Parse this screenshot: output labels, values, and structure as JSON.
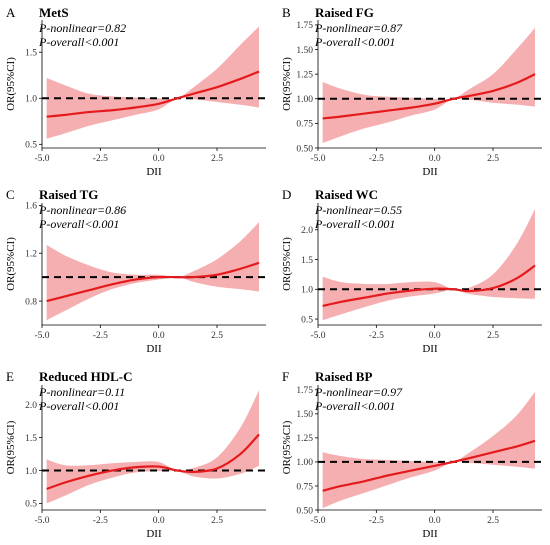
{
  "colors": {
    "line": "#e41a1c",
    "band": "#f4a1a3",
    "ref": "#000000"
  },
  "chart_data": [
    {
      "type": "line",
      "letter": "A",
      "title": "MetS",
      "p_nonlinear": "P-nonlinear=0.82",
      "p_overall": "P-overall<0.001",
      "xlabel": "DII",
      "ylabel": "OR(95%CI)",
      "xlim": [
        -5.0,
        4.6
      ],
      "ylim": [
        0.46,
        1.85
      ],
      "xticks": [
        -5.0,
        -2.5,
        0.0,
        2.5
      ],
      "xtick_labels": [
        "-5.0",
        "-2.5",
        "0.0",
        "2.5"
      ],
      "yticks": [
        0.5,
        1.0,
        1.5
      ],
      "ytick_labels": [
        "0.5",
        "1.0",
        "1.5"
      ],
      "reference_y": 1.0,
      "x": [
        -4.8,
        -4.0,
        -3.0,
        -2.0,
        -1.0,
        0.0,
        0.8,
        1.5,
        2.5,
        3.5,
        4.3
      ],
      "y": [
        0.8,
        0.82,
        0.85,
        0.87,
        0.9,
        0.94,
        1.0,
        1.05,
        1.12,
        1.21,
        1.29
      ],
      "lower": [
        0.56,
        0.62,
        0.7,
        0.76,
        0.82,
        0.88,
        1.0,
        0.99,
        0.96,
        0.93,
        0.9
      ],
      "upper": [
        1.22,
        1.14,
        1.05,
        1.02,
        1.01,
        1.0,
        1.0,
        1.12,
        1.32,
        1.58,
        1.78
      ]
    },
    {
      "type": "line",
      "letter": "B",
      "title": "Raised FG",
      "p_nonlinear": "P-nonlinear=0.87",
      "p_overall": "P-overall<0.001",
      "xlabel": "DII",
      "ylabel": "OR(95%CI)",
      "xlim": [
        -5.0,
        4.6
      ],
      "ylim": [
        0.5,
        1.8
      ],
      "xticks": [
        -5.0,
        -2.5,
        0.0,
        2.5
      ],
      "xtick_labels": [
        "-5.0",
        "-2.5",
        "0.0",
        "2.5"
      ],
      "yticks": [
        0.5,
        0.75,
        1.0,
        1.25,
        1.5,
        1.75
      ],
      "ytick_labels": [
        "0.50",
        "0.75",
        "1.00",
        "1.25",
        "1.50",
        "1.75"
      ],
      "reference_y": 1.0,
      "x": [
        -4.8,
        -4.0,
        -3.0,
        -2.0,
        -1.0,
        0.0,
        0.8,
        1.5,
        2.5,
        3.5,
        4.3
      ],
      "y": [
        0.8,
        0.82,
        0.85,
        0.88,
        0.91,
        0.95,
        1.0,
        1.03,
        1.08,
        1.16,
        1.25
      ],
      "lower": [
        0.55,
        0.62,
        0.7,
        0.76,
        0.83,
        0.89,
        1.0,
        0.99,
        0.96,
        0.94,
        0.92
      ],
      "upper": [
        1.17,
        1.1,
        1.04,
        1.02,
        1.01,
        1.0,
        1.0,
        1.1,
        1.25,
        1.5,
        1.72
      ]
    },
    {
      "type": "line",
      "letter": "C",
      "title": "Raised TG",
      "p_nonlinear": "P-nonlinear=0.86",
      "p_overall": "P-overall<0.001",
      "xlabel": "DII",
      "ylabel": "OR(95%CI)",
      "xlim": [
        -5.0,
        4.6
      ],
      "ylim": [
        0.6,
        1.62
      ],
      "xticks": [
        -5.0,
        -2.5,
        0.0,
        2.5
      ],
      "xtick_labels": [
        "-5.0",
        "-2.5",
        "0.0",
        "2.5"
      ],
      "yticks": [
        0.8,
        1.2,
        1.6
      ],
      "ytick_labels": [
        "0.8",
        "1.2",
        "1.6"
      ],
      "reference_y": 1.0,
      "x": [
        -4.8,
        -4.0,
        -3.0,
        -2.0,
        -1.0,
        0.0,
        0.8,
        1.5,
        2.5,
        3.5,
        4.3
      ],
      "y": [
        0.8,
        0.84,
        0.89,
        0.94,
        0.98,
        1.0,
        1.0,
        1.0,
        1.02,
        1.07,
        1.12
      ],
      "lower": [
        0.64,
        0.72,
        0.82,
        0.9,
        0.95,
        0.98,
        1.0,
        0.96,
        0.92,
        0.9,
        0.88
      ],
      "upper": [
        1.27,
        1.18,
        1.1,
        1.04,
        1.02,
        1.02,
        1.0,
        1.05,
        1.15,
        1.3,
        1.46
      ]
    },
    {
      "type": "line",
      "letter": "D",
      "title": "Raised WC",
      "p_nonlinear": "P-nonlinear=0.55",
      "p_overall": "P-overall<0.001",
      "xlabel": "DII",
      "ylabel": "OR(95%CI)",
      "xlim": [
        -5.0,
        4.6
      ],
      "ylim": [
        0.4,
        2.45
      ],
      "xticks": [
        -5.0,
        -2.5,
        0.0,
        2.5
      ],
      "xtick_labels": [
        "-5.0",
        "-2.5",
        "0.0",
        "2.5"
      ],
      "yticks": [
        0.5,
        1.0,
        1.5,
        2.0
      ],
      "ytick_labels": [
        "0.5",
        "1.0",
        "1.5",
        "2.0"
      ],
      "reference_y": 1.0,
      "x": [
        -4.8,
        -4.0,
        -3.0,
        -2.0,
        -1.0,
        0.0,
        0.8,
        1.5,
        2.5,
        3.5,
        4.3
      ],
      "y": [
        0.72,
        0.79,
        0.86,
        0.93,
        0.98,
        1.01,
        1.0,
        0.97,
        1.02,
        1.18,
        1.4
      ],
      "lower": [
        0.48,
        0.58,
        0.7,
        0.81,
        0.88,
        0.93,
        0.99,
        0.92,
        0.87,
        0.85,
        0.84
      ],
      "upper": [
        1.21,
        1.12,
        1.09,
        1.09,
        1.12,
        1.12,
        1.0,
        1.03,
        1.25,
        1.75,
        2.35
      ]
    },
    {
      "type": "line",
      "letter": "E",
      "title": "Reduced HDL-C",
      "p_nonlinear": "P-nonlinear=0.11",
      "p_overall": "P-overall<0.001",
      "xlabel": "DII",
      "ylabel": "OR(95%CI)",
      "xlim": [
        -5.0,
        4.6
      ],
      "ylim": [
        0.4,
        2.3
      ],
      "xticks": [
        -5.0,
        -2.5,
        0.0,
        2.5
      ],
      "xtick_labels": [
        "-5.0",
        "-2.5",
        "0.0",
        "2.5"
      ],
      "yticks": [
        0.5,
        1.0,
        1.5,
        2.0
      ],
      "ytick_labels": [
        "0.5",
        "1.0",
        "1.5",
        "2.0"
      ],
      "reference_y": 1.0,
      "x": [
        -4.8,
        -4.0,
        -3.0,
        -2.0,
        -1.0,
        0.0,
        0.8,
        1.5,
        2.5,
        3.5,
        4.3
      ],
      "y": [
        0.72,
        0.82,
        0.92,
        1.0,
        1.05,
        1.06,
        1.0,
        0.98,
        1.03,
        1.25,
        1.55
      ],
      "lower": [
        0.5,
        0.62,
        0.78,
        0.89,
        0.97,
        0.99,
        0.99,
        0.91,
        0.88,
        0.95,
        1.07
      ],
      "upper": [
        1.17,
        1.08,
        1.08,
        1.11,
        1.13,
        1.13,
        1.0,
        1.04,
        1.2,
        1.65,
        2.22
      ]
    },
    {
      "type": "line",
      "letter": "F",
      "title": "Raised BP",
      "p_nonlinear": "P-nonlinear=0.97",
      "p_overall": "P-overall<0.001",
      "xlabel": "DII",
      "ylabel": "OR(95%CI)",
      "xlim": [
        -5.0,
        4.6
      ],
      "ylim": [
        0.5,
        1.8
      ],
      "xticks": [
        -5.0,
        -2.5,
        0.0,
        2.5
      ],
      "xtick_labels": [
        "-5.0",
        "-2.5",
        "0.0",
        "2.5"
      ],
      "yticks": [
        0.5,
        0.75,
        1.0,
        1.25,
        1.5,
        1.75
      ],
      "ytick_labels": [
        "0.50",
        "0.75",
        "1.00",
        "1.25",
        "1.50",
        "1.75"
      ],
      "reference_y": 1.0,
      "x": [
        -4.8,
        -4.0,
        -3.0,
        -2.0,
        -1.0,
        0.0,
        0.8,
        1.5,
        2.5,
        3.5,
        4.3
      ],
      "y": [
        0.7,
        0.75,
        0.8,
        0.86,
        0.91,
        0.96,
        1.0,
        1.04,
        1.1,
        1.16,
        1.22
      ],
      "lower": [
        0.52,
        0.6,
        0.68,
        0.76,
        0.84,
        0.91,
        1.0,
        0.99,
        0.97,
        0.95,
        0.93
      ],
      "upper": [
        1.1,
        1.06,
        1.03,
        1.02,
        1.01,
        1.0,
        1.0,
        1.1,
        1.27,
        1.48,
        1.73
      ]
    }
  ]
}
